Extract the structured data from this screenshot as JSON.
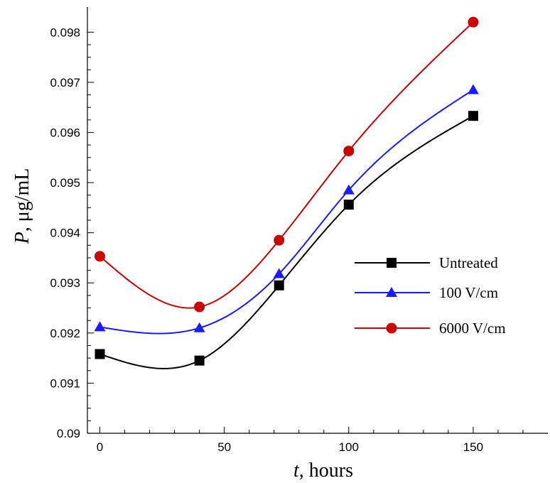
{
  "chart_data": {
    "type": "line",
    "x_axis": {
      "label_italic": "t",
      "label_rest": ", hours",
      "range": [
        -5,
        180
      ],
      "ticks": [
        0,
        50,
        100,
        150
      ],
      "tick_labels": [
        "0",
        "50",
        "100",
        "150"
      ]
    },
    "y_axis": {
      "label_italic": "P",
      "label_rest": ", μg/mL",
      "range": [
        0.09,
        0.0985
      ],
      "ticks": [
        0.09,
        0.091,
        0.092,
        0.093,
        0.094,
        0.095,
        0.096,
        0.097,
        0.098
      ],
      "tick_labels": [
        "0.09",
        "0.091",
        "0.092",
        "0.093",
        "0.094",
        "0.095",
        "0.096",
        "0.097",
        "0.098"
      ]
    },
    "grid": false,
    "legend_position": "center-right",
    "series": [
      {
        "name": "Untreated",
        "color": "#000000",
        "marker": "square",
        "x": [
          0,
          40,
          72,
          100,
          150
        ],
        "y": [
          0.09158,
          0.09145,
          0.09295,
          0.09456,
          0.09633
        ]
      },
      {
        "name": "100 V/cm",
        "color": "#1a1aff",
        "marker": "triangle",
        "x": [
          0,
          40,
          72,
          100,
          150
        ],
        "y": [
          0.09212,
          0.0921,
          0.09318,
          0.09485,
          0.09685
        ]
      },
      {
        "name": "6000 V/cm",
        "color": "#cc0000",
        "marker": "circle",
        "x": [
          0,
          40,
          72,
          100,
          150
        ],
        "y": [
          0.09353,
          0.09252,
          0.09385,
          0.09563,
          0.0982
        ]
      }
    ]
  }
}
